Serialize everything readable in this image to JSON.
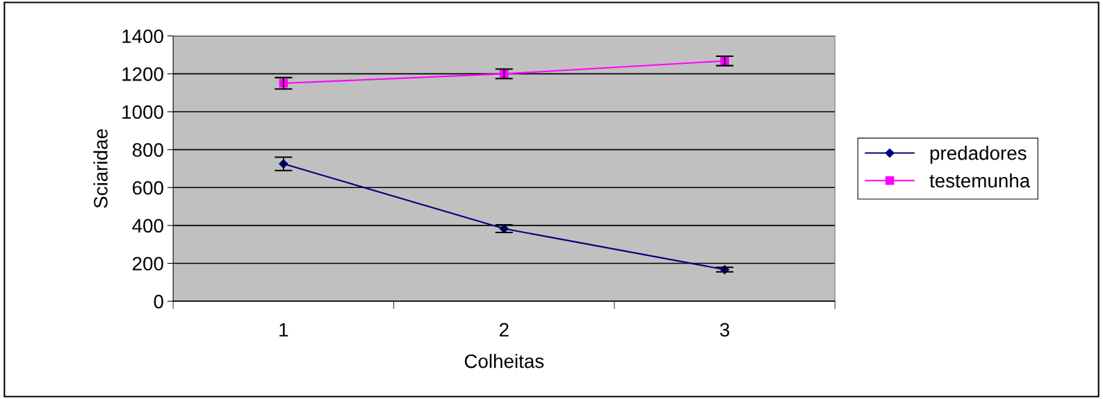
{
  "chart_data": {
    "type": "line",
    "xlabel": "Colheitas",
    "ylabel": "Sciaridae",
    "categories": [
      "1",
      "2",
      "3"
    ],
    "series": [
      {
        "name": "predadores",
        "color": "#000080",
        "marker": "diamond",
        "values": [
          725,
          383,
          167
        ],
        "errors": [
          35,
          20,
          12
        ]
      },
      {
        "name": "testemunha",
        "color": "#ff00ff",
        "marker": "square",
        "values": [
          1150,
          1200,
          1268
        ],
        "errors": [
          30,
          25,
          25
        ]
      }
    ],
    "ylim": [
      0,
      1400
    ],
    "yticks": [
      0,
      200,
      400,
      600,
      800,
      1000,
      1200,
      1400
    ],
    "grid": "y",
    "legend": "right"
  }
}
